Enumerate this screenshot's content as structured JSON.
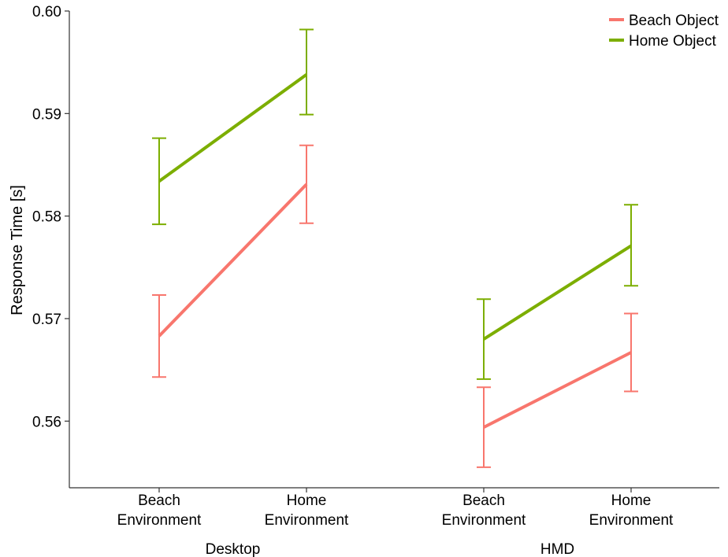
{
  "chart_data": {
    "type": "line",
    "ylabel": "Response Time [s]",
    "ylim": [
      0.5535,
      0.6
    ],
    "yticks": [
      "0.56",
      "0.57",
      "0.58",
      "0.59",
      "0.60"
    ],
    "ytick_values": [
      0.56,
      0.57,
      0.58,
      0.59,
      0.6
    ],
    "groups": [
      {
        "name": "Desktop",
        "categories": [
          {
            "line1": "Beach",
            "line2": "Environment"
          },
          {
            "line1": "Home",
            "line2": "Environment"
          }
        ]
      },
      {
        "name": "HMD",
        "categories": [
          {
            "line1": "Beach",
            "line2": "Environment"
          },
          {
            "line1": "Home",
            "line2": "Environment"
          }
        ]
      }
    ],
    "series": [
      {
        "name": "Beach Object",
        "color": "#F8766D",
        "values": [
          [
            0.5683,
            0.5831
          ],
          [
            0.5594,
            0.5667
          ]
        ],
        "err_low": [
          [
            0.5643,
            0.5793
          ],
          [
            0.5555,
            0.5629
          ]
        ],
        "err_high": [
          [
            0.5723,
            0.5869
          ],
          [
            0.5633,
            0.5705
          ]
        ]
      },
      {
        "name": "Home Object",
        "color": "#7CAE00",
        "values": [
          [
            0.5834,
            0.5938
          ],
          [
            0.568,
            0.5771
          ]
        ],
        "err_low": [
          [
            0.5792,
            0.5899
          ],
          [
            0.5641,
            0.5732
          ]
        ],
        "err_high": [
          [
            0.5876,
            0.5982
          ],
          [
            0.5719,
            0.5811
          ]
        ]
      }
    ],
    "legend_position": "top-right",
    "grid": false
  }
}
